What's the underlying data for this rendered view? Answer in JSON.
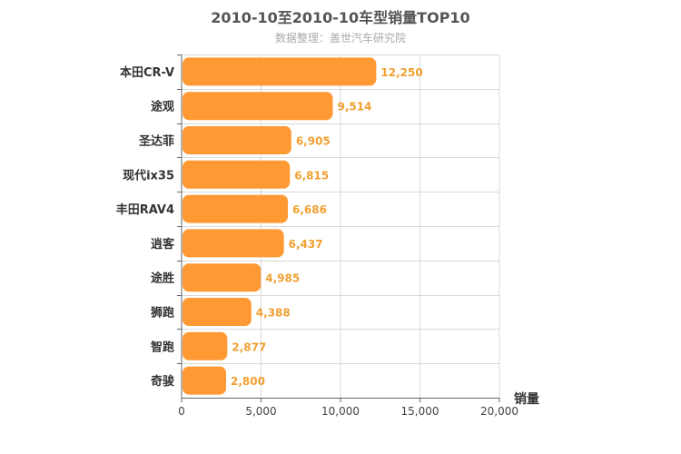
{
  "chart_data": {
    "type": "bar",
    "orientation": "horizontal",
    "title": "2010-10至2010-10车型销量TOP10",
    "subtitle": "数据整理：盖世汽车研究院",
    "categories": [
      "本田CR-V",
      "途观",
      "圣达菲",
      "现代ix35",
      "丰田RAV4",
      "逍客",
      "途胜",
      "狮跑",
      "智跑",
      "奇骏"
    ],
    "values": [
      12250,
      9514,
      6905,
      6815,
      6686,
      6437,
      4985,
      4388,
      2877,
      2800
    ],
    "value_labels": [
      "12,250",
      "9,514",
      "6,905",
      "6,815",
      "6,686",
      "6,437",
      "4,985",
      "4,388",
      "2,877",
      "2,800"
    ],
    "xlabel": "销量",
    "ylabel": "",
    "xlim": [
      0,
      20000
    ],
    "x_ticks": [
      0,
      5000,
      10000,
      15000,
      20000
    ],
    "x_tick_labels": [
      "0",
      "5,000",
      "10,000",
      "15,000",
      "20,000"
    ],
    "grid": true,
    "legend": "none",
    "colors": {
      "bar": "#FF9933",
      "value_label": "#F0A030",
      "title": "#555555",
      "subtitle": "#AAAAAA",
      "grid": "#D9D9D9",
      "axis": "#666666",
      "category_label": "#333333"
    }
  }
}
